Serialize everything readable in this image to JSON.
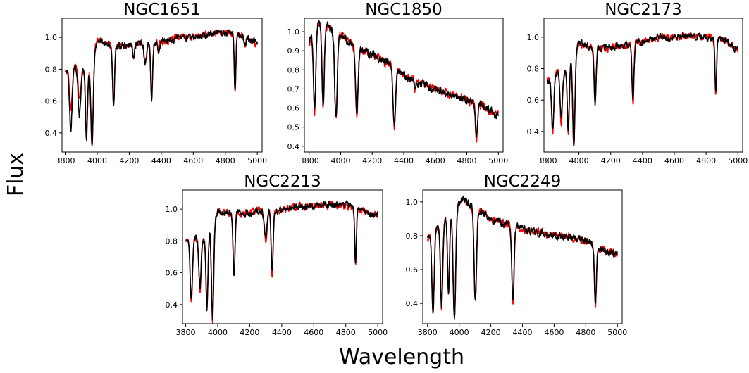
{
  "figure": {
    "xlabel": "Wavelength",
    "ylabel": "Flux"
  },
  "chart_data": [
    {
      "type": "line",
      "title": "NGC1651",
      "xlim": [
        3780,
        5030
      ],
      "ylim": [
        0.28,
        1.12
      ],
      "xticks": [
        3800,
        4000,
        4200,
        4400,
        4600,
        4800,
        5000
      ],
      "yticks": [
        0.4,
        0.6,
        0.8,
        1.0
      ],
      "continuum": [
        [
          3800,
          0.78
        ],
        [
          3860,
          0.82
        ],
        [
          3920,
          0.8
        ],
        [
          3960,
          0.8
        ],
        [
          4000,
          0.98
        ],
        [
          4100,
          0.95
        ],
        [
          4200,
          0.95
        ],
        [
          4300,
          0.97
        ],
        [
          4400,
          0.97
        ],
        [
          4500,
          1.0
        ],
        [
          4600,
          1.0
        ],
        [
          4700,
          1.02
        ],
        [
          4800,
          1.03
        ],
        [
          4900,
          1.01
        ],
        [
          5000,
          0.96
        ]
      ],
      "lines": [
        [
          3835,
          0.55,
          0.42,
          8
        ],
        [
          3889,
          0.6,
          0.5,
          8
        ],
        [
          3933,
          0.38,
          0.36,
          6
        ],
        [
          3968,
          0.33,
          0.32,
          7
        ],
        [
          4102,
          0.58,
          0.56,
          6
        ],
        [
          4227,
          0.88,
          0.88,
          6
        ],
        [
          4300,
          0.84,
          0.84,
          8
        ],
        [
          4340,
          0.63,
          0.62,
          6
        ],
        [
          4383,
          0.9,
          0.9,
          5
        ],
        [
          4861,
          0.66,
          0.65,
          5
        ],
        [
          4923,
          0.95,
          0.95,
          5
        ]
      ],
      "series": [
        {
          "color": "#ff0000",
          "values": []
        },
        {
          "color": "#000000",
          "values": []
        }
      ]
    },
    {
      "type": "line",
      "title": "NGC1850",
      "xlim": [
        3770,
        5030
      ],
      "ylim": [
        0.37,
        1.07
      ],
      "xticks": [
        3800,
        4000,
        4200,
        4400,
        4600,
        4800,
        5000
      ],
      "yticks": [
        0.4,
        0.5,
        0.6,
        0.7,
        0.8,
        0.9,
        1.0
      ],
      "continuum": [
        [
          3800,
          0.94
        ],
        [
          3850,
          1.04
        ],
        [
          3920,
          1.03
        ],
        [
          4000,
          0.98
        ],
        [
          4100,
          0.92
        ],
        [
          4200,
          0.88
        ],
        [
          4330,
          0.82
        ],
        [
          4400,
          0.77
        ],
        [
          4500,
          0.73
        ],
        [
          4600,
          0.7
        ],
        [
          4700,
          0.67
        ],
        [
          4800,
          0.64
        ],
        [
          4900,
          0.61
        ],
        [
          5000,
          0.56
        ]
      ],
      "lines": [
        [
          3835,
          0.58,
          0.58,
          7
        ],
        [
          3889,
          0.61,
          0.61,
          7
        ],
        [
          3970,
          0.55,
          0.55,
          8
        ],
        [
          4102,
          0.56,
          0.58,
          8
        ],
        [
          4340,
          0.5,
          0.51,
          8
        ],
        [
          4471,
          0.69,
          0.7,
          4
        ],
        [
          4861,
          0.42,
          0.46,
          6
        ]
      ],
      "series": [
        {
          "color": "#ff0000",
          "values": []
        },
        {
          "color": "#000000",
          "values": []
        }
      ]
    },
    {
      "type": "line",
      "title": "NGC2173",
      "xlim": [
        3780,
        5030
      ],
      "ylim": [
        0.27,
        1.12
      ],
      "xticks": [
        3800,
        4000,
        4200,
        4400,
        4600,
        4800,
        5000
      ],
      "yticks": [
        0.4,
        0.6,
        0.8,
        1.0
      ],
      "continuum": [
        [
          3800,
          0.72
        ],
        [
          3860,
          0.78
        ],
        [
          3920,
          0.78
        ],
        [
          4000,
          0.96
        ],
        [
          4100,
          0.93
        ],
        [
          4200,
          0.93
        ],
        [
          4300,
          0.95
        ],
        [
          4400,
          0.97
        ],
        [
          4500,
          1.0
        ],
        [
          4600,
          1.0
        ],
        [
          4700,
          1.01
        ],
        [
          4800,
          1.0
        ],
        [
          4900,
          0.99
        ],
        [
          5000,
          0.92
        ]
      ],
      "lines": [
        [
          3835,
          0.38,
          0.42,
          7
        ],
        [
          3889,
          0.44,
          0.48,
          7
        ],
        [
          3933,
          0.38,
          0.4,
          6
        ],
        [
          3968,
          0.3,
          0.32,
          7
        ],
        [
          4102,
          0.57,
          0.58,
          6
        ],
        [
          4340,
          0.58,
          0.6,
          6
        ],
        [
          4861,
          0.62,
          0.66,
          5
        ]
      ],
      "series": [
        {
          "color": "#ff0000",
          "values": []
        },
        {
          "color": "#000000",
          "values": []
        }
      ]
    },
    {
      "type": "line",
      "title": "NGC2213",
      "xlim": [
        3780,
        5030
      ],
      "ylim": [
        0.28,
        1.12
      ],
      "xticks": [
        3800,
        4000,
        4200,
        4400,
        4600,
        4800,
        5000
      ],
      "yticks": [
        0.4,
        0.6,
        0.8,
        1.0
      ],
      "continuum": [
        [
          3800,
          0.8
        ],
        [
          3860,
          0.82
        ],
        [
          3920,
          0.8
        ],
        [
          4000,
          0.98
        ],
        [
          4100,
          0.97
        ],
        [
          4200,
          0.98
        ],
        [
          4300,
          0.99
        ],
        [
          4400,
          0.99
        ],
        [
          4500,
          1.02
        ],
        [
          4600,
          1.02
        ],
        [
          4700,
          1.03
        ],
        [
          4800,
          1.02
        ],
        [
          4900,
          0.99
        ],
        [
          5000,
          0.96
        ]
      ],
      "lines": [
        [
          3835,
          0.4,
          0.44,
          7
        ],
        [
          3889,
          0.48,
          0.52,
          7
        ],
        [
          3933,
          0.38,
          0.38,
          6
        ],
        [
          3968,
          0.29,
          0.32,
          7
        ],
        [
          4102,
          0.58,
          0.58,
          6
        ],
        [
          4300,
          0.8,
          0.8,
          8
        ],
        [
          4340,
          0.59,
          0.6,
          6
        ],
        [
          4861,
          0.64,
          0.64,
          5
        ]
      ],
      "series": [
        {
          "color": "#ff0000",
          "values": []
        },
        {
          "color": "#000000",
          "values": []
        }
      ]
    },
    {
      "type": "line",
      "title": "NGC2249",
      "xlim": [
        3770,
        5030
      ],
      "ylim": [
        0.28,
        1.07
      ],
      "xticks": [
        3800,
        4000,
        4200,
        4400,
        4600,
        4800,
        5000
      ],
      "yticks": [
        0.4,
        0.6,
        0.8,
        1.0
      ],
      "continuum": [
        [
          3800,
          0.78
        ],
        [
          3870,
          0.86
        ],
        [
          3930,
          0.9
        ],
        [
          4020,
          1.02
        ],
        [
          4100,
          0.96
        ],
        [
          4200,
          0.9
        ],
        [
          4300,
          0.87
        ],
        [
          4400,
          0.84
        ],
        [
          4500,
          0.82
        ],
        [
          4600,
          0.8
        ],
        [
          4700,
          0.79
        ],
        [
          4800,
          0.77
        ],
        [
          4900,
          0.72
        ],
        [
          5000,
          0.69
        ]
      ],
      "lines": [
        [
          3835,
          0.35,
          0.35,
          7
        ],
        [
          3889,
          0.37,
          0.38,
          7
        ],
        [
          3933,
          0.45,
          0.45,
          6
        ],
        [
          3970,
          0.31,
          0.31,
          8
        ],
        [
          4102,
          0.42,
          0.42,
          8
        ],
        [
          4340,
          0.4,
          0.41,
          7
        ],
        [
          4861,
          0.39,
          0.4,
          6
        ]
      ],
      "series": [
        {
          "color": "#ff0000",
          "values": []
        },
        {
          "color": "#000000",
          "values": []
        }
      ]
    }
  ]
}
